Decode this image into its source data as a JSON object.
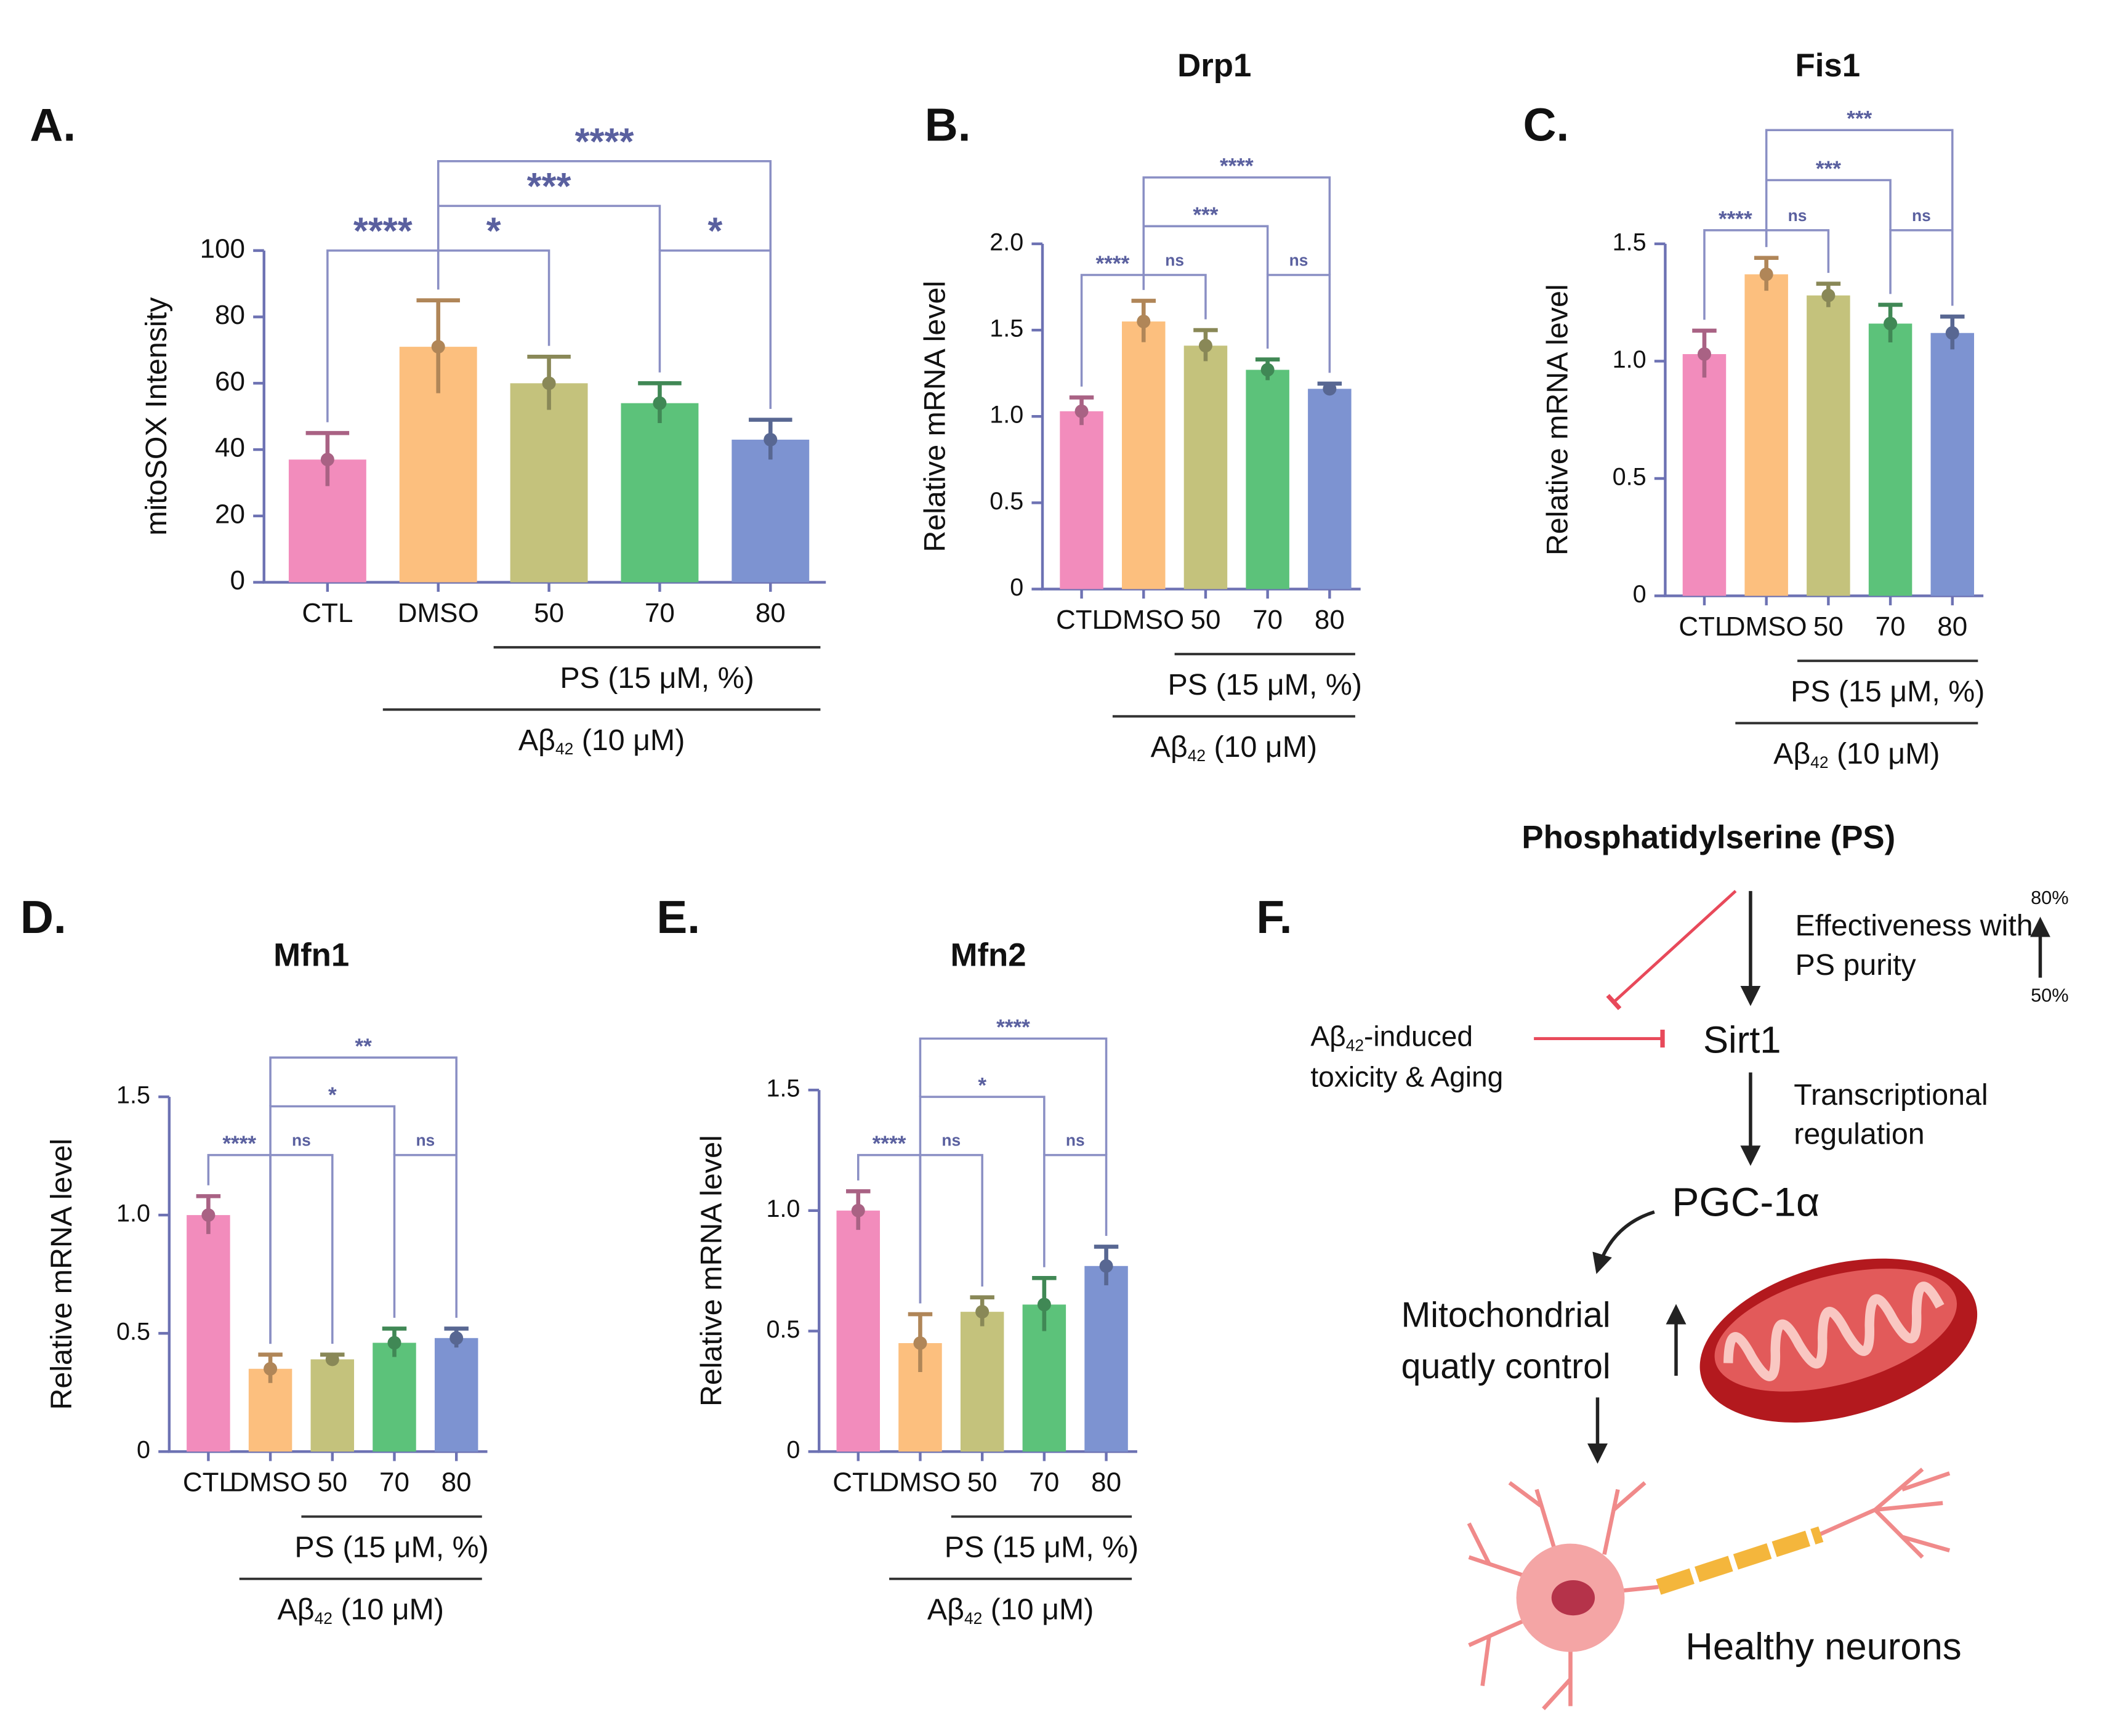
{
  "chart_data": [
    {
      "type": "bar",
      "panel": "A.",
      "ylabel": "mitoSOX Intensity",
      "categories": [
        "CTL",
        "DMSO",
        "50",
        "70",
        "80"
      ],
      "values": [
        37,
        71,
        60,
        54,
        43
      ],
      "errors": [
        8,
        14,
        8,
        6,
        6
      ],
      "colors": [
        "#f28cbc",
        "#fcbf7e",
        "#c4c27c",
        "#5cc27a",
        "#7d93d1"
      ],
      "ylim": [
        0,
        100
      ],
      "yticks": [
        0,
        20,
        40,
        60,
        80,
        100
      ],
      "significance": [
        {
          "pair": [
            "CTL",
            "DMSO"
          ],
          "label": "****"
        },
        {
          "pair": [
            "DMSO",
            "50"
          ],
          "label": "*"
        },
        {
          "pair": [
            "70",
            "80"
          ],
          "label": "*"
        },
        {
          "pair": [
            "DMSO",
            "70"
          ],
          "label": "***"
        },
        {
          "pair": [
            "DMSO",
            "80"
          ],
          "label": "****"
        }
      ],
      "groups": [
        {
          "from": "50",
          "label": [
            "PS (15 μM, %)"
          ]
        },
        {
          "from": "DMSO",
          "label": [
            "Aβ",
            "42",
            " (10 μM)"
          ]
        }
      ]
    },
    {
      "type": "bar",
      "panel": "B.",
      "title": "Drp1",
      "ylabel": "Relative mRNA level",
      "categories": [
        "CTL",
        "DMSO",
        "50",
        "70",
        "80"
      ],
      "values": [
        1.03,
        1.55,
        1.41,
        1.27,
        1.16
      ],
      "errors": [
        0.08,
        0.12,
        0.09,
        0.06,
        0.03
      ],
      "colors": [
        "#f28cbc",
        "#fcbf7e",
        "#c4c27c",
        "#5cc27a",
        "#7d93d1"
      ],
      "ylim": [
        0,
        2
      ],
      "yticks": [
        0,
        0.5,
        {
          "value": 1,
          "label": "1.0"
        },
        1.5,
        {
          "value": 2,
          "label": "2.0"
        }
      ],
      "significance": [
        {
          "pair": [
            "CTL",
            "DMSO"
          ],
          "label": "****"
        },
        {
          "pair": [
            "DMSO",
            "50"
          ],
          "label": "ns"
        },
        {
          "pair": [
            "70",
            "80"
          ],
          "label": "ns"
        },
        {
          "pair": [
            "DMSO",
            "70"
          ],
          "label": "***"
        },
        {
          "pair": [
            "DMSO",
            "80"
          ],
          "label": "****"
        }
      ],
      "groups": [
        {
          "from": "50",
          "label": [
            "PS (15 μM, %)"
          ]
        },
        {
          "from": "DMSO",
          "label": [
            "Aβ",
            "42",
            " (10 μM)"
          ]
        }
      ]
    },
    {
      "type": "bar",
      "panel": "C.",
      "title": "Fis1",
      "ylabel": "Relative mRNA level",
      "categories": [
        "CTL",
        "DMSO",
        "50",
        "70",
        "80"
      ],
      "values": [
        1.03,
        1.37,
        1.28,
        1.16,
        1.12
      ],
      "errors": [
        0.1,
        0.07,
        0.05,
        0.08,
        0.07
      ],
      "colors": [
        "#f28cbc",
        "#fcbf7e",
        "#c4c27c",
        "#5cc27a",
        "#7d93d1"
      ],
      "ylim": [
        0,
        1.5
      ],
      "yticks": [
        0,
        0.5,
        {
          "value": 1,
          "label": "1.0"
        },
        1.5
      ],
      "significance": [
        {
          "pair": [
            "CTL",
            "DMSO"
          ],
          "label": "****"
        },
        {
          "pair": [
            "DMSO",
            "50"
          ],
          "label": "ns"
        },
        {
          "pair": [
            "70",
            "80"
          ],
          "label": "ns"
        },
        {
          "pair": [
            "DMSO",
            "70"
          ],
          "label": "***"
        },
        {
          "pair": [
            "DMSO",
            "80"
          ],
          "label": "***"
        }
      ],
      "groups": [
        {
          "from": "50",
          "label": [
            "PS (15 μM, %)"
          ]
        },
        {
          "from": "DMSO",
          "label": [
            "Aβ",
            "42",
            " (10 μM)"
          ]
        }
      ]
    },
    {
      "type": "bar",
      "panel": "D.",
      "title": "Mfn1",
      "ylabel": "Relative mRNA level",
      "categories": [
        "CTL",
        "DMSO",
        "50",
        "70",
        "80"
      ],
      "values": [
        1.0,
        0.35,
        0.39,
        0.46,
        0.48
      ],
      "errors": [
        0.08,
        0.06,
        0.02,
        0.06,
        0.04
      ],
      "colors": [
        "#f28cbc",
        "#fcbf7e",
        "#c4c27c",
        "#5cc27a",
        "#7d93d1"
      ],
      "ylim": [
        0,
        1.5
      ],
      "yticks": [
        0,
        0.5,
        {
          "value": 1,
          "label": "1.0"
        },
        1.5
      ],
      "significance": [
        {
          "pair": [
            "CTL",
            "DMSO"
          ],
          "label": "****"
        },
        {
          "pair": [
            "DMSO",
            "50"
          ],
          "label": "ns"
        },
        {
          "pair": [
            "70",
            "80"
          ],
          "label": "ns"
        },
        {
          "pair": [
            "DMSO",
            "70"
          ],
          "label": "*"
        },
        {
          "pair": [
            "DMSO",
            "80"
          ],
          "label": "**"
        }
      ],
      "groups": [
        {
          "from": "50",
          "label": [
            "PS (15 μM, %)"
          ]
        },
        {
          "from": "DMSO",
          "label": [
            "Aβ",
            "42",
            " (10 μM)"
          ]
        }
      ]
    },
    {
      "type": "bar",
      "panel": "E.",
      "title": "Mfn2",
      "ylabel": "Relative mRNA level",
      "categories": [
        "CTL",
        "DMSO",
        "50",
        "70",
        "80"
      ],
      "values": [
        1.0,
        0.45,
        0.58,
        0.61,
        0.77
      ],
      "errors": [
        0.08,
        0.12,
        0.06,
        0.11,
        0.08
      ],
      "colors": [
        "#f28cbc",
        "#fcbf7e",
        "#c4c27c",
        "#5cc27a",
        "#7d93d1"
      ],
      "ylim": [
        0,
        1.5
      ],
      "yticks": [
        0,
        0.5,
        {
          "value": 1,
          "label": "1.0"
        },
        1.5
      ],
      "significance": [
        {
          "pair": [
            "CTL",
            "DMSO"
          ],
          "label": "****"
        },
        {
          "pair": [
            "DMSO",
            "50"
          ],
          "label": "ns"
        },
        {
          "pair": [
            "70",
            "80"
          ],
          "label": "ns"
        },
        {
          "pair": [
            "DMSO",
            "70"
          ],
          "label": "*"
        },
        {
          "pair": [
            "DMSO",
            "80"
          ],
          "label": "****"
        }
      ],
      "groups": [
        {
          "from": "50",
          "label": [
            "PS (15 μM, %)"
          ]
        },
        {
          "from": "DMSO",
          "label": [
            "Aβ",
            "42",
            " (10 μM)"
          ]
        }
      ]
    }
  ],
  "diagram": {
    "panel": "F.",
    "source": "Phosphatidylserine (PS)",
    "effect": [
      "Effectiveness with",
      "PS purity"
    ],
    "purity_high": "80%",
    "purity_low": "50%",
    "toxicity": [
      [
        "Aβ",
        "42",
        "-induced"
      ],
      "toxicity & Aging"
    ],
    "sirt": "Sirt1",
    "regulation": [
      "Transcriptional",
      "regulation"
    ],
    "pgc": "PGC-1α",
    "quality": [
      "Mitochondrial",
      "quatly control"
    ],
    "outcome": "Healthy neurons"
  }
}
